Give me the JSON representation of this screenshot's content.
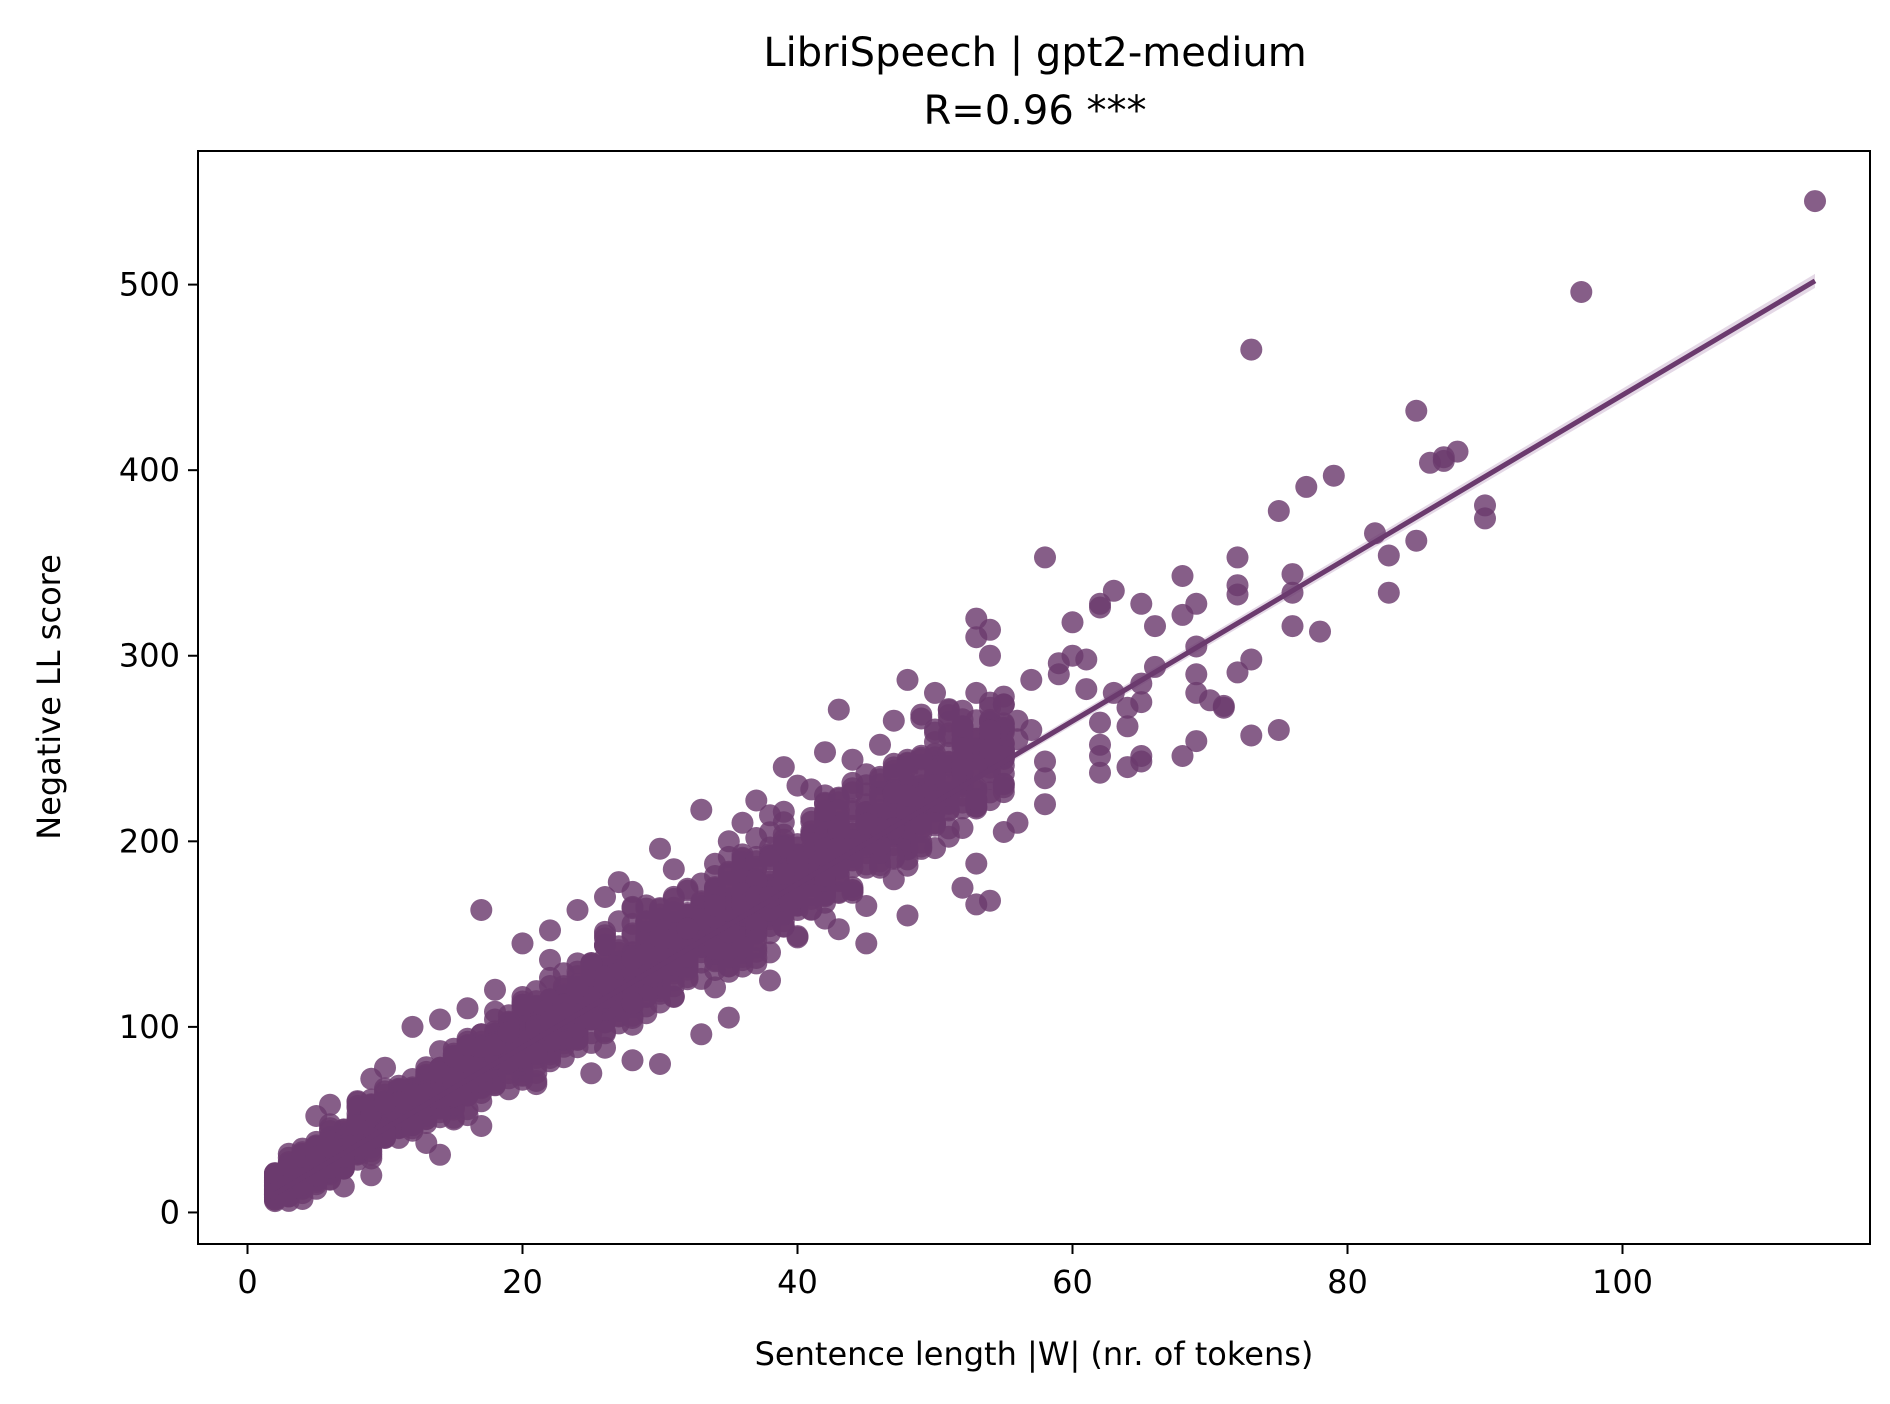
{
  "chart_data": {
    "type": "scatter",
    "title": "LibriSpeech | gpt2-medium",
    "subtitle": "R=0.96 ***",
    "xlabel": "Sentence length |W| (nr. of tokens)",
    "ylabel": "Negative LL score",
    "xlim": [
      -3.6,
      118
    ],
    "ylim": [
      -17,
      572
    ],
    "xticks": [
      0,
      20,
      40,
      60,
      80,
      100
    ],
    "xtick_labels": [
      "0",
      "20",
      "40",
      "60",
      "80",
      "100"
    ],
    "yticks": [
      0,
      100,
      200,
      300,
      400,
      500
    ],
    "ytick_labels": [
      "0",
      "100",
      "200",
      "300",
      "400",
      "500"
    ],
    "grid": false,
    "legend": "none",
    "colors": {
      "points": "#6b3a6e",
      "fit_line": "#6b3a6e",
      "confidence_band": "#d8c8dc"
    },
    "fit_line": {
      "x": [
        2,
        114
      ],
      "y": [
        10,
        502
      ]
    },
    "density_trend": {
      "x": [
        2,
        5,
        10,
        15,
        20,
        25,
        30,
        35,
        40,
        45,
        50,
        55
      ],
      "y": [
        13,
        27,
        50,
        70,
        92,
        115,
        138,
        158,
        182,
        205,
        228,
        250
      ],
      "spread": [
        7,
        10,
        13,
        16,
        19,
        21,
        23,
        25,
        27,
        28,
        28,
        28
      ]
    },
    "points": [
      [
        2,
        8
      ],
      [
        2,
        13
      ],
      [
        2,
        17
      ],
      [
        2,
        21
      ],
      [
        3,
        12
      ],
      [
        3,
        17
      ],
      [
        3,
        25
      ],
      [
        4,
        15
      ],
      [
        4,
        22
      ],
      [
        4,
        30
      ],
      [
        5,
        20
      ],
      [
        5,
        30
      ],
      [
        5,
        52
      ],
      [
        6,
        24
      ],
      [
        6,
        35
      ],
      [
        6,
        58
      ],
      [
        7,
        14
      ],
      [
        7,
        30
      ],
      [
        8,
        36
      ],
      [
        8,
        60
      ],
      [
        9,
        20
      ],
      [
        9,
        72
      ],
      [
        10,
        78
      ],
      [
        12,
        100
      ],
      [
        14,
        104
      ],
      [
        16,
        110
      ],
      [
        17,
        163
      ],
      [
        18,
        120
      ],
      [
        20,
        145
      ],
      [
        22,
        152
      ],
      [
        24,
        163
      ],
      [
        25,
        75
      ],
      [
        26,
        170
      ],
      [
        27,
        178
      ],
      [
        28,
        82
      ],
      [
        28,
        164
      ],
      [
        30,
        80
      ],
      [
        30,
        196
      ],
      [
        31,
        185
      ],
      [
        33,
        217
      ],
      [
        33,
        96
      ],
      [
        35,
        105
      ],
      [
        35,
        200
      ],
      [
        36,
        210
      ],
      [
        37,
        222
      ],
      [
        38,
        125
      ],
      [
        38,
        214
      ],
      [
        39,
        240
      ],
      [
        40,
        230
      ],
      [
        41,
        228
      ],
      [
        42,
        248
      ],
      [
        43,
        271
      ],
      [
        44,
        244
      ],
      [
        45,
        145
      ],
      [
        46,
        252
      ],
      [
        47,
        265
      ],
      [
        48,
        287
      ],
      [
        48,
        160
      ],
      [
        49,
        245
      ],
      [
        50,
        280
      ],
      [
        51,
        268
      ],
      [
        52,
        175
      ],
      [
        52,
        262
      ],
      [
        53,
        166
      ],
      [
        53,
        188
      ],
      [
        53,
        310
      ],
      [
        53,
        320
      ],
      [
        53,
        280
      ],
      [
        54,
        168
      ],
      [
        54,
        314
      ],
      [
        54,
        300
      ],
      [
        54,
        272
      ],
      [
        55,
        205
      ],
      [
        55,
        278
      ],
      [
        56,
        210
      ],
      [
        56,
        255
      ],
      [
        56,
        265
      ],
      [
        57,
        260
      ],
      [
        57,
        287
      ],
      [
        58,
        220
      ],
      [
        58,
        234
      ],
      [
        58,
        243
      ],
      [
        58,
        353
      ],
      [
        59,
        290
      ],
      [
        59,
        296
      ],
      [
        60,
        300
      ],
      [
        60,
        318
      ],
      [
        61,
        298
      ],
      [
        61,
        282
      ],
      [
        62,
        237
      ],
      [
        62,
        246
      ],
      [
        62,
        252
      ],
      [
        62,
        264
      ],
      [
        62,
        326
      ],
      [
        62,
        328
      ],
      [
        63,
        335
      ],
      [
        63,
        280
      ],
      [
        64,
        240
      ],
      [
        64,
        262
      ],
      [
        64,
        272
      ],
      [
        65,
        328
      ],
      [
        65,
        275
      ],
      [
        65,
        285
      ],
      [
        65,
        246
      ],
      [
        65,
        243
      ],
      [
        66,
        294
      ],
      [
        66,
        316
      ],
      [
        68,
        246
      ],
      [
        68,
        322
      ],
      [
        68,
        343
      ],
      [
        69,
        328
      ],
      [
        69,
        305
      ],
      [
        69,
        290
      ],
      [
        69,
        280
      ],
      [
        69,
        254
      ],
      [
        70,
        276
      ],
      [
        71,
        273
      ],
      [
        71,
        272
      ],
      [
        72,
        353
      ],
      [
        72,
        338
      ],
      [
        72,
        333
      ],
      [
        72,
        291
      ],
      [
        73,
        465
      ],
      [
        73,
        298
      ],
      [
        73,
        257
      ],
      [
        75,
        378
      ],
      [
        75,
        260
      ],
      [
        76,
        344
      ],
      [
        76,
        334
      ],
      [
        76,
        316
      ],
      [
        77,
        391
      ],
      [
        78,
        313
      ],
      [
        79,
        397
      ],
      [
        82,
        366
      ],
      [
        83,
        354
      ],
      [
        83,
        334
      ],
      [
        85,
        432
      ],
      [
        85,
        362
      ],
      [
        86,
        404
      ],
      [
        87,
        405
      ],
      [
        87,
        407
      ],
      [
        88,
        410
      ],
      [
        90,
        381
      ],
      [
        90,
        374
      ],
      [
        97,
        496
      ],
      [
        114,
        545
      ]
    ]
  }
}
